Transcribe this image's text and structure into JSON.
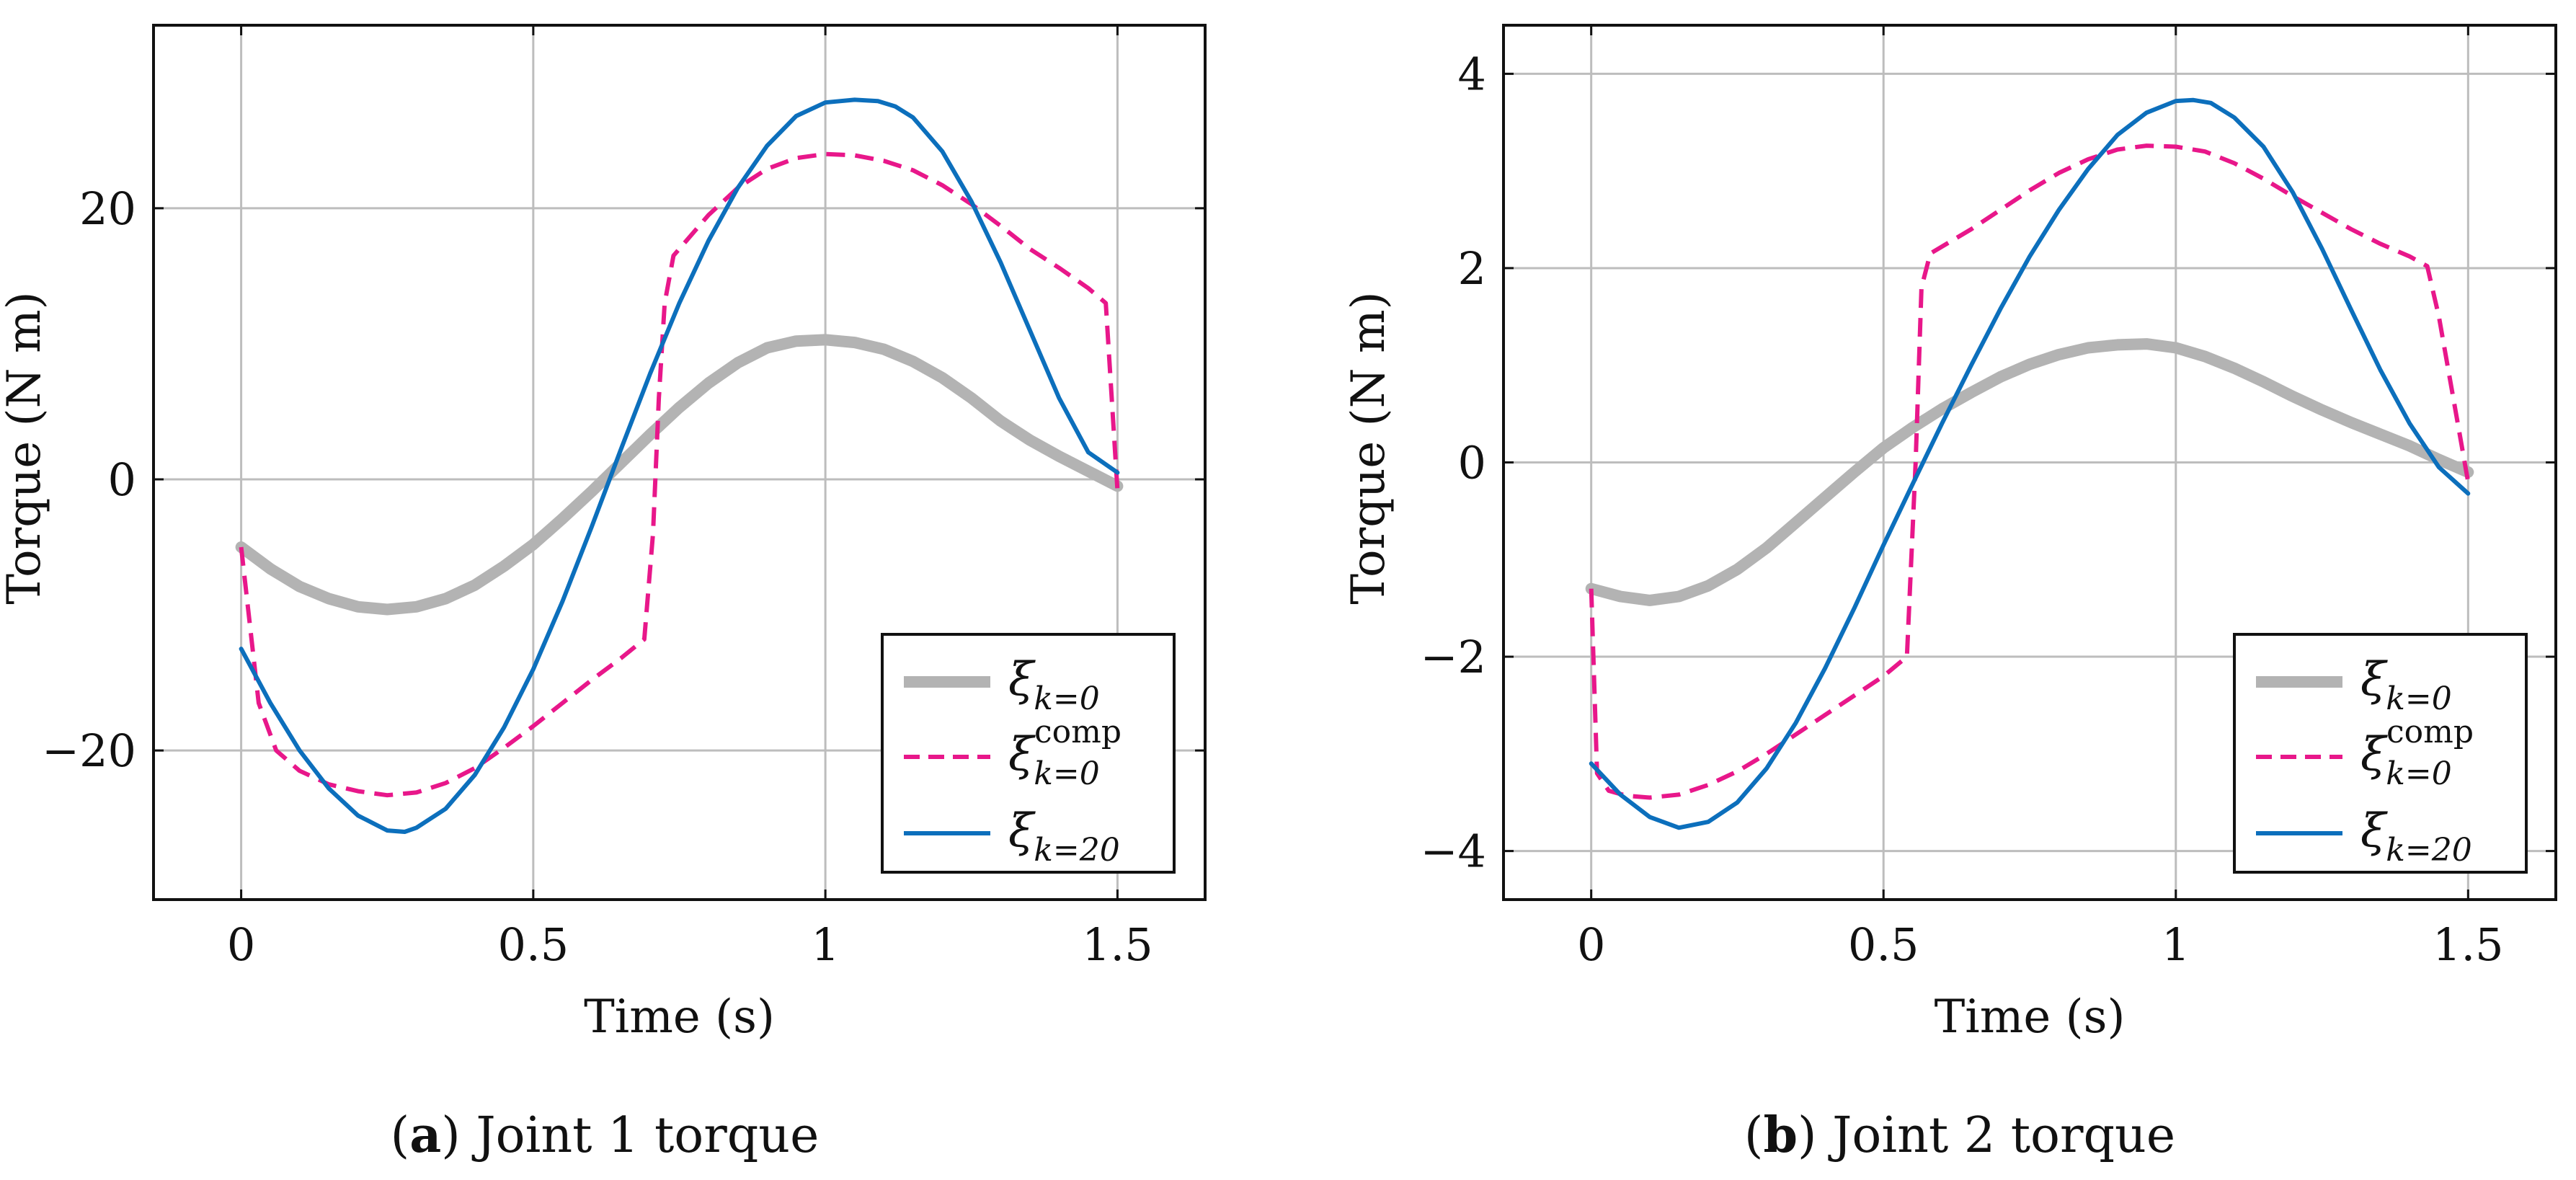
{
  "chart_data": [
    {
      "type": "line",
      "panel_label": "a",
      "caption": "Joint 1 torque",
      "xlabel": "Time (s)",
      "ylabel": "Torque (N m)",
      "xlim": [
        -0.15,
        1.65
      ],
      "ylim": [
        -31.0,
        33.5
      ],
      "xticks": [
        0,
        0.5,
        1,
        1.5
      ],
      "xtick_labels": [
        "0",
        "0.5",
        "1",
        "1.5"
      ],
      "yticks": [
        -20,
        0,
        20
      ],
      "ytick_labels": [
        "−20",
        "0",
        "20"
      ],
      "grid": true,
      "legend_position": "bottom-right",
      "series": [
        {
          "name": "ξ_{k=0}",
          "sym": "ξ",
          "sub": "k=0",
          "sup": "",
          "color": "#b3b3b3",
          "style": "solid",
          "width": 16,
          "x": [
            0,
            0.05,
            0.1,
            0.15,
            0.2,
            0.25,
            0.3,
            0.35,
            0.4,
            0.45,
            0.5,
            0.55,
            0.6,
            0.65,
            0.7,
            0.75,
            0.8,
            0.85,
            0.9,
            0.95,
            1.0,
            1.05,
            1.1,
            1.15,
            1.2,
            1.25,
            1.3,
            1.35,
            1.4,
            1.45,
            1.5
          ],
          "y": [
            -5.0,
            -6.6,
            -7.9,
            -8.8,
            -9.4,
            -9.6,
            -9.4,
            -8.8,
            -7.8,
            -6.4,
            -4.8,
            -2.9,
            -0.9,
            1.2,
            3.3,
            5.3,
            7.1,
            8.6,
            9.7,
            10.2,
            10.3,
            10.1,
            9.6,
            8.7,
            7.5,
            6.0,
            4.3,
            2.9,
            1.7,
            0.6,
            -0.5
          ]
        },
        {
          "name": "ξ^{comp}_{k=0}",
          "sym": "ξ",
          "sub": "k=0",
          "sup": "comp",
          "color": "#e8178a",
          "style": "dashed",
          "width": 6,
          "x": [
            0,
            0.03,
            0.06,
            0.1,
            0.15,
            0.2,
            0.25,
            0.3,
            0.35,
            0.4,
            0.45,
            0.5,
            0.55,
            0.6,
            0.65,
            0.69,
            0.705,
            0.715,
            0.725,
            0.74,
            0.8,
            0.85,
            0.9,
            0.95,
            1.0,
            1.05,
            1.1,
            1.15,
            1.2,
            1.25,
            1.3,
            1.35,
            1.4,
            1.45,
            1.48,
            1.5
          ],
          "y": [
            -5.0,
            -16.5,
            -20.0,
            -21.5,
            -22.5,
            -23.0,
            -23.3,
            -23.1,
            -22.4,
            -21.3,
            -19.8,
            -18.2,
            -16.5,
            -14.8,
            -13.2,
            -11.8,
            -4.0,
            6.0,
            13.0,
            16.5,
            19.5,
            21.5,
            22.9,
            23.7,
            24.0,
            23.9,
            23.5,
            22.8,
            21.7,
            20.3,
            18.7,
            17.0,
            15.6,
            14.1,
            13.0,
            -0.8
          ]
        },
        {
          "name": "ξ_{k=20}",
          "sym": "ξ",
          "sub": "k=20",
          "sup": "",
          "color": "#0c6fbc",
          "style": "solid",
          "width": 6,
          "x": [
            0,
            0.05,
            0.1,
            0.15,
            0.2,
            0.25,
            0.28,
            0.3,
            0.35,
            0.4,
            0.45,
            0.5,
            0.55,
            0.6,
            0.65,
            0.7,
            0.75,
            0.8,
            0.85,
            0.9,
            0.95,
            1.0,
            1.05,
            1.09,
            1.12,
            1.15,
            1.2,
            1.25,
            1.3,
            1.35,
            1.4,
            1.45,
            1.5
          ],
          "y": [
            -12.5,
            -16.5,
            -20.0,
            -22.8,
            -24.8,
            -25.9,
            -26.0,
            -25.7,
            -24.3,
            -21.8,
            -18.3,
            -14.0,
            -9.0,
            -3.5,
            2.2,
            7.8,
            13.0,
            17.6,
            21.5,
            24.6,
            26.8,
            27.8,
            28.0,
            27.9,
            27.5,
            26.7,
            24.2,
            20.5,
            16.0,
            11.0,
            6.0,
            2.0,
            0.5
          ]
        }
      ]
    },
    {
      "type": "line",
      "panel_label": "b",
      "caption": "Joint 2 torque",
      "xlabel": "Time (s)",
      "ylabel": "Torque (N m)",
      "xlim": [
        -0.15,
        1.65
      ],
      "ylim": [
        -4.5,
        4.5
      ],
      "xticks": [
        0,
        0.5,
        1,
        1.5
      ],
      "xtick_labels": [
        "0",
        "0.5",
        "1",
        "1.5"
      ],
      "yticks": [
        -4,
        -2,
        0,
        2,
        4
      ],
      "ytick_labels": [
        "−4",
        "−2",
        "0",
        "2",
        "4"
      ],
      "grid": true,
      "legend_position": "bottom-right",
      "series": [
        {
          "name": "ξ_{k=0}",
          "sym": "ξ",
          "sub": "k=0",
          "sup": "",
          "color": "#b3b3b3",
          "style": "solid",
          "width": 16,
          "x": [
            0,
            0.05,
            0.1,
            0.15,
            0.2,
            0.25,
            0.3,
            0.35,
            0.4,
            0.45,
            0.5,
            0.55,
            0.6,
            0.65,
            0.7,
            0.75,
            0.8,
            0.85,
            0.9,
            0.95,
            1.0,
            1.05,
            1.1,
            1.15,
            1.2,
            1.25,
            1.3,
            1.35,
            1.4,
            1.45,
            1.5
          ],
          "y": [
            -1.3,
            -1.38,
            -1.42,
            -1.38,
            -1.27,
            -1.1,
            -0.88,
            -0.62,
            -0.36,
            -0.1,
            0.15,
            0.36,
            0.55,
            0.72,
            0.88,
            1.01,
            1.11,
            1.18,
            1.21,
            1.22,
            1.18,
            1.09,
            0.97,
            0.83,
            0.68,
            0.54,
            0.41,
            0.29,
            0.17,
            0.03,
            -0.1
          ]
        },
        {
          "name": "ξ^{comp}_{k=0}",
          "sym": "ξ",
          "sub": "k=0",
          "sup": "comp",
          "color": "#e8178a",
          "style": "dashed",
          "width": 6,
          "x": [
            0,
            0.01,
            0.03,
            0.06,
            0.1,
            0.15,
            0.2,
            0.25,
            0.3,
            0.35,
            0.4,
            0.45,
            0.5,
            0.54,
            0.555,
            0.565,
            0.58,
            0.65,
            0.7,
            0.75,
            0.8,
            0.85,
            0.9,
            0.95,
            1.0,
            1.05,
            1.1,
            1.15,
            1.2,
            1.25,
            1.3,
            1.35,
            1.4,
            1.43,
            1.45,
            1.5
          ],
          "y": [
            -1.3,
            -3.2,
            -3.38,
            -3.43,
            -3.45,
            -3.42,
            -3.32,
            -3.18,
            -3.0,
            -2.8,
            -2.6,
            -2.4,
            -2.2,
            -2.0,
            0.0,
            1.8,
            2.15,
            2.4,
            2.6,
            2.8,
            2.98,
            3.12,
            3.22,
            3.26,
            3.25,
            3.2,
            3.08,
            2.92,
            2.74,
            2.57,
            2.4,
            2.25,
            2.12,
            2.02,
            1.5,
            -0.2
          ]
        },
        {
          "name": "ξ_{k=20}",
          "sym": "ξ",
          "sub": "k=20",
          "sup": "",
          "color": "#0c6fbc",
          "style": "solid",
          "width": 6,
          "x": [
            0,
            0.05,
            0.1,
            0.15,
            0.2,
            0.25,
            0.3,
            0.35,
            0.4,
            0.45,
            0.5,
            0.55,
            0.6,
            0.65,
            0.7,
            0.75,
            0.8,
            0.85,
            0.9,
            0.95,
            1.0,
            1.03,
            1.06,
            1.1,
            1.15,
            1.2,
            1.25,
            1.3,
            1.35,
            1.4,
            1.45,
            1.5
          ],
          "y": [
            -3.1,
            -3.42,
            -3.65,
            -3.76,
            -3.7,
            -3.5,
            -3.15,
            -2.68,
            -2.12,
            -1.5,
            -0.85,
            -0.22,
            0.4,
            1.0,
            1.58,
            2.12,
            2.6,
            3.02,
            3.37,
            3.6,
            3.72,
            3.73,
            3.7,
            3.55,
            3.25,
            2.78,
            2.2,
            1.57,
            0.95,
            0.4,
            -0.05,
            -0.32
          ]
        }
      ]
    }
  ]
}
